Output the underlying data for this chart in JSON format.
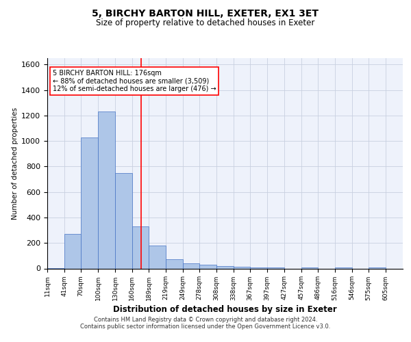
{
  "title1": "5, BIRCHY BARTON HILL, EXETER, EX1 3ET",
  "title2": "Size of property relative to detached houses in Exeter",
  "xlabel": "Distribution of detached houses by size in Exeter",
  "ylabel": "Number of detached properties",
  "bar_left_edges": [
    11,
    41,
    70,
    100,
    130,
    160,
    189,
    219,
    249,
    278,
    308,
    338,
    367,
    397,
    427,
    457,
    486,
    516,
    546,
    575,
    605
  ],
  "bar_heights": [
    5,
    270,
    1030,
    1230,
    750,
    330,
    180,
    70,
    40,
    30,
    20,
    15,
    10,
    10,
    0,
    10,
    0,
    10,
    0,
    10,
    0
  ],
  "bar_widths": [
    30,
    29,
    30,
    30,
    30,
    29,
    30,
    30,
    29,
    30,
    30,
    29,
    30,
    30,
    30,
    29,
    30,
    30,
    29,
    30,
    30
  ],
  "bar_color": "#aec6e8",
  "bar_edge_color": "#4472c4",
  "property_line_x": 176,
  "property_line_color": "red",
  "annotation_line1": "5 BIRCHY BARTON HILL: 176sqm",
  "annotation_line2": "← 88% of detached houses are smaller (3,509)",
  "annotation_line3": "12% of semi-detached houses are larger (476) →",
  "annotation_box_color": "red",
  "ylim": [
    0,
    1650
  ],
  "yticks": [
    0,
    200,
    400,
    600,
    800,
    1000,
    1200,
    1400,
    1600
  ],
  "xtick_labels": [
    "11sqm",
    "41sqm",
    "70sqm",
    "100sqm",
    "130sqm",
    "160sqm",
    "189sqm",
    "219sqm",
    "249sqm",
    "278sqm",
    "308sqm",
    "338sqm",
    "367sqm",
    "397sqm",
    "427sqm",
    "457sqm",
    "486sqm",
    "516sqm",
    "546sqm",
    "575sqm",
    "605sqm"
  ],
  "footer_text1": "Contains HM Land Registry data © Crown copyright and database right 2024.",
  "footer_text2": "Contains public sector information licensed under the Open Government Licence v3.0.",
  "bg_color": "#eef2fb",
  "grid_color": "#c8d0e0"
}
